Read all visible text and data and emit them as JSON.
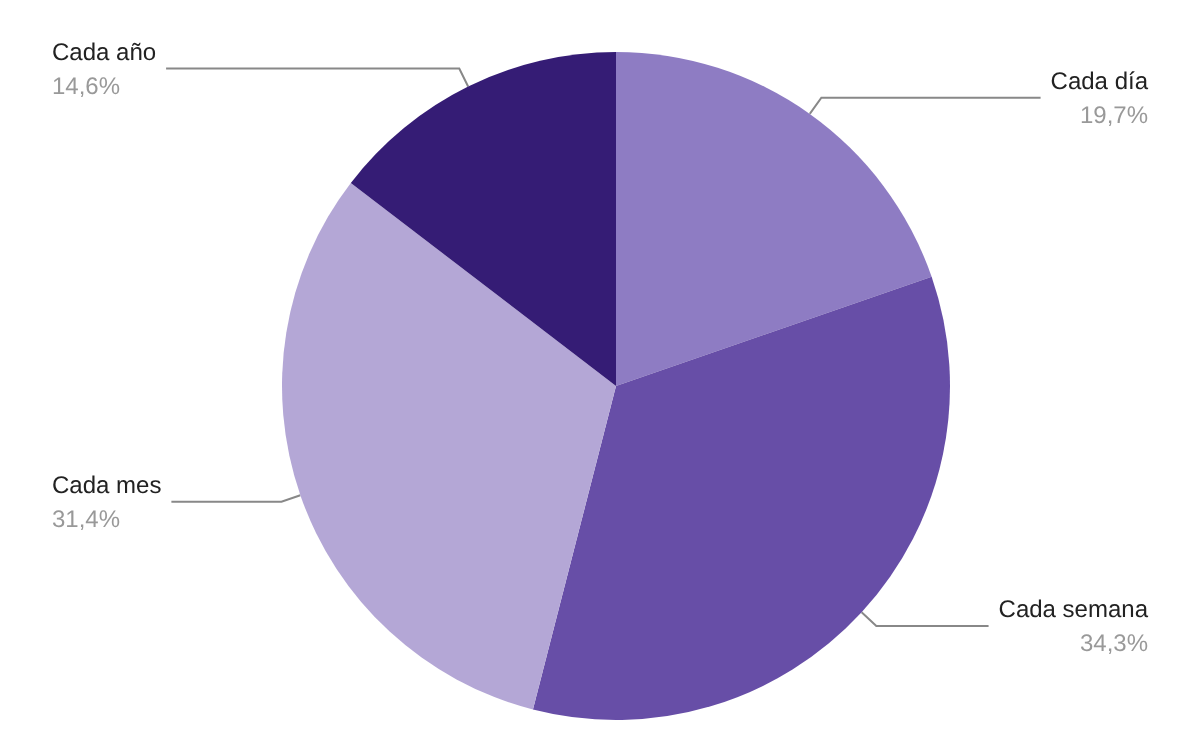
{
  "chart_data": {
    "type": "pie",
    "categories": [
      "Cada día",
      "Cada semana",
      "Cada mes",
      "Cada año"
    ],
    "values": [
      19.7,
      34.3,
      31.4,
      14.6
    ],
    "colors": [
      "#8e7cc3",
      "#674ea7",
      "#b4a7d6",
      "#351c75"
    ],
    "value_labels": [
      "19,7%",
      "34,3%",
      "31,4%",
      "14,6%"
    ],
    "legend": false
  }
}
